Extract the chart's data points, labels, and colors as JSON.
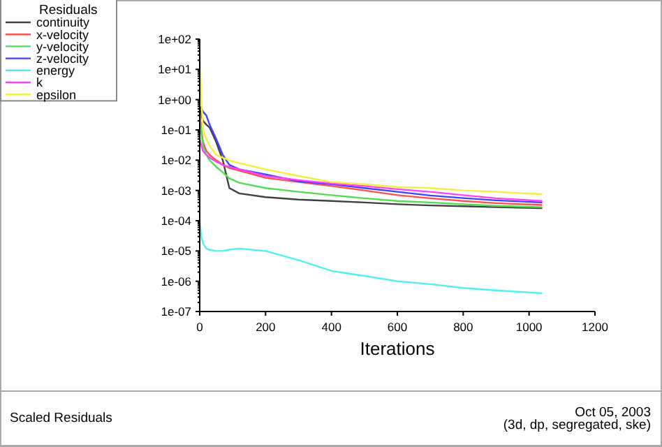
{
  "chart_data": {
    "type": "line",
    "title": "Scaled Residuals",
    "xlabel": "Iterations",
    "legend_title": "Residuals",
    "legend": "top left",
    "log": "y",
    "marker": "none",
    "line_style": "solid",
    "grid": false,
    "annotations": [
      "Oct 05, 2003",
      "(3d, dp, segregated, ske)"
    ],
    "x": [
      0,
      5,
      10,
      20,
      30,
      50,
      70,
      90,
      120,
      200,
      300,
      400,
      500,
      600,
      700,
      800,
      900,
      1040
    ],
    "xlim": [
      0,
      1200
    ],
    "xticks": [
      0,
      200,
      400,
      600,
      800,
      1000,
      1200
    ],
    "ylim": [
      1e-07,
      100
    ],
    "yticks": [
      {
        "value": 1e-07,
        "label": "1e-07"
      },
      {
        "value": 1e-06,
        "label": "1e-06"
      },
      {
        "value": 1e-05,
        "label": "1e-05"
      },
      {
        "value": 0.0001,
        "label": "1e-04"
      },
      {
        "value": 0.001,
        "label": "1e-03"
      },
      {
        "value": 0.01,
        "label": "1e-02"
      },
      {
        "value": 0.1,
        "label": "1e-01"
      },
      {
        "value": 1,
        "label": "1e+00"
      },
      {
        "value": 10,
        "label": "1e+01"
      },
      {
        "value": 100,
        "label": "1e+02"
      }
    ],
    "series": [
      {
        "name": "continuity",
        "color": "#404040",
        "values": [
          0.5,
          0.3,
          0.2,
          0.15,
          0.12,
          0.04,
          0.01,
          0.0012,
          0.0008,
          0.0006,
          0.0005,
          0.00045,
          0.0004,
          0.00035,
          0.00032,
          0.0003,
          0.00028,
          0.00026
        ]
      },
      {
        "name": "x-velocity",
        "color": "#ff5050",
        "values": [
          0.4,
          0.1,
          0.04,
          0.02,
          0.015,
          0.01,
          0.007,
          0.0055,
          0.0045,
          0.0026,
          0.0019,
          0.0014,
          0.001,
          0.0007,
          0.00055,
          0.00045,
          0.00038,
          0.00033
        ]
      },
      {
        "name": "y-velocity",
        "color": "#50dd50",
        "values": [
          0.3,
          0.08,
          0.03,
          0.015,
          0.01,
          0.006,
          0.004,
          0.0025,
          0.0018,
          0.0012,
          0.0009,
          0.0007,
          0.00055,
          0.00045,
          0.0004,
          0.00035,
          0.00031,
          0.00028
        ]
      },
      {
        "name": "z-velocity",
        "color": "#4040ff",
        "values": [
          0.6,
          0.5,
          0.4,
          0.3,
          0.15,
          0.05,
          0.015,
          0.007,
          0.005,
          0.0034,
          0.002,
          0.0016,
          0.0012,
          0.0009,
          0.00068,
          0.00056,
          0.00047,
          0.0004
        ]
      },
      {
        "name": "energy",
        "color": "#50f0f0",
        "values": [
          0.0001,
          3e-05,
          1.8e-05,
          1.2e-05,
          1.1e-05,
          1e-05,
          1e-05,
          1.1e-05,
          1.2e-05,
          1e-05,
          5e-06,
          2.2e-06,
          1.5e-06,
          1e-06,
          8e-07,
          6e-07,
          5e-07,
          4e-07
        ]
      },
      {
        "name": "k",
        "color": "#ff40ff",
        "values": [
          0.05,
          0.03,
          0.02,
          0.015,
          0.012,
          0.009,
          0.007,
          0.006,
          0.005,
          0.003,
          0.0022,
          0.0017,
          0.0014,
          0.0011,
          0.0009,
          0.0007,
          0.00055,
          0.00045
        ]
      },
      {
        "name": "epsilon",
        "color": "#f0f040",
        "values": [
          50,
          1,
          0.1,
          0.05,
          0.03,
          0.015,
          0.012,
          0.01,
          0.008,
          0.005,
          0.003,
          0.0019,
          0.0016,
          0.0013,
          0.0012,
          0.001,
          0.0009,
          0.00075
        ]
      }
    ]
  }
}
